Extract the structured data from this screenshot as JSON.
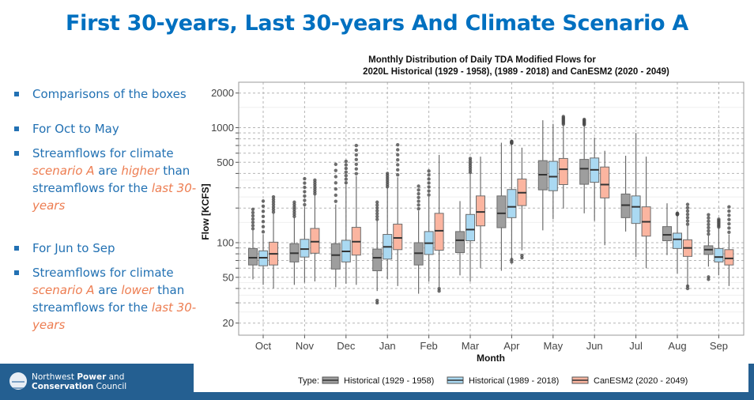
{
  "slide": {
    "title": "First 30-years, Last 30-years And Climate Scenario A",
    "bullets": [
      {
        "segments": [
          {
            "text": "Comparisons of the boxes",
            "hl": false
          }
        ]
      },
      {
        "segments": [
          {
            "text": "For Oct to May",
            "hl": false
          }
        ]
      },
      {
        "segments": [
          {
            "text": "Streamflows for climate ",
            "hl": false
          },
          {
            "text": "scenario A",
            "hl": true
          },
          {
            "text": " are ",
            "hl": false
          },
          {
            "text": "higher",
            "hl": true
          },
          {
            "text": " than streamflows for the ",
            "hl": false
          },
          {
            "text": "last 30-years",
            "hl": true
          }
        ]
      },
      {
        "segments": [
          {
            "text": "For Jun to Sep",
            "hl": false
          }
        ]
      },
      {
        "segments": [
          {
            "text": "Streamflows for climate ",
            "hl": false
          },
          {
            "text": "scenario A",
            "hl": true
          },
          {
            "text": " are ",
            "hl": false
          },
          {
            "text": "lower",
            "hl": true
          },
          {
            "text": " than streamflows for the ",
            "hl": false
          },
          {
            "text": "last 30-years",
            "hl": true
          }
        ]
      }
    ],
    "footer": {
      "logo_line1_normal": "Northwest ",
      "logo_line1_bold": "Power",
      "logo_line1_end": " and",
      "logo_line2_bold": "Conservation",
      "logo_line2_end": " Council"
    },
    "colors": {
      "title": "#0070c0",
      "bullet": "#2271b3",
      "highlight": "#ed7d51",
      "footer": "#245f91"
    }
  },
  "chart_data": {
    "type": "boxplot",
    "title_line1": "Monthly Distribution of Daily TDA Modified Flows for",
    "title_line2": "2020L Historical (1929 - 1958), (1989 - 2018) and CanESM2 (2020 - 2049)",
    "xlabel": "Month",
    "ylabel": "Flow [KCFS]",
    "yscale": "log10",
    "ylim": [
      15,
      2400
    ],
    "yticks": [
      20,
      50,
      100,
      500,
      1000,
      2000
    ],
    "ytick_labels": [
      "20",
      "50",
      "100",
      "500",
      "1000",
      "2000"
    ],
    "minor_grid": [
      30,
      40,
      60,
      70,
      80,
      90,
      200,
      300,
      400,
      600,
      700,
      800,
      900
    ],
    "grid": true,
    "categories": [
      "Oct",
      "Nov",
      "Dec",
      "Jan",
      "Feb",
      "Mar",
      "Apr",
      "May",
      "Jun",
      "Jul",
      "Aug",
      "Sep"
    ],
    "legend": {
      "title": "Type:",
      "position": "bottom"
    },
    "series": [
      {
        "name": "Historical (1929 - 1958)",
        "color": "#9e9e9e",
        "boxes": [
          {
            "min": 48,
            "q1": 64,
            "median": 74,
            "q3": 89,
            "max": 128,
            "outliers_low": 0,
            "outliers_high": 195
          },
          {
            "min": 43,
            "q1": 68,
            "median": 81,
            "q3": 98,
            "max": 165,
            "outliers_low": 0,
            "outliers_high": 225
          },
          {
            "min": 41,
            "q1": 59,
            "median": 78,
            "q3": 98,
            "max": 215,
            "outliers_low": 0,
            "outliers_high": 480
          },
          {
            "min": 38,
            "q1": 57,
            "median": 74,
            "q3": 88,
            "max": 155,
            "outliers_low": 30,
            "outliers_high": 225
          },
          {
            "min": 36,
            "q1": 64,
            "median": 81,
            "q3": 100,
            "max": 190,
            "outliers_low": 0,
            "outliers_high": 310
          },
          {
            "min": 52,
            "q1": 82,
            "median": 105,
            "q3": 125,
            "max": 230,
            "outliers_low": 0,
            "outliers_high": 230
          },
          {
            "min": 57,
            "q1": 135,
            "median": 180,
            "q3": 255,
            "max": 740,
            "outliers_low": 0,
            "outliers_high": 0
          },
          {
            "min": 128,
            "q1": 288,
            "median": 390,
            "q3": 517,
            "max": 1160,
            "outliers_low": 0,
            "outliers_high": 0
          },
          {
            "min": 180,
            "q1": 322,
            "median": 440,
            "q3": 530,
            "max": 1050,
            "outliers_low": 0,
            "outliers_high": 1180
          },
          {
            "min": 125,
            "q1": 165,
            "median": 212,
            "q3": 265,
            "max": 570,
            "outliers_low": 0,
            "outliers_high": 0
          },
          {
            "min": 78,
            "q1": 104,
            "median": 117,
            "q3": 138,
            "max": 220,
            "outliers_low": 0,
            "outliers_high": 0
          },
          {
            "min": 62,
            "q1": 79,
            "median": 87,
            "q3": 94,
            "max": 115,
            "outliers_low": 48,
            "outliers_high": 175
          }
        ]
      },
      {
        "name": "Historical (1989 - 2018)",
        "color": "#aad9f2",
        "boxes": [
          {
            "min": 43,
            "q1": 63,
            "median": 74,
            "q3": 85,
            "max": 118,
            "outliers_low": 0,
            "outliers_high": 230
          },
          {
            "min": 45,
            "q1": 75,
            "median": 88,
            "q3": 107,
            "max": 205,
            "outliers_low": 0,
            "outliers_high": 360
          },
          {
            "min": 44,
            "q1": 68,
            "median": 84,
            "q3": 105,
            "max": 320,
            "outliers_low": 0,
            "outliers_high": 510
          },
          {
            "min": 48,
            "q1": 72,
            "median": 92,
            "q3": 118,
            "max": 300,
            "outliers_low": 0,
            "outliers_high": 400
          },
          {
            "min": 46,
            "q1": 79,
            "median": 99,
            "q3": 125,
            "max": 250,
            "outliers_low": 0,
            "outliers_high": 420
          },
          {
            "min": 46,
            "q1": 104,
            "median": 130,
            "q3": 176,
            "max": 400,
            "outliers_low": 47,
            "outliers_high": 540
          },
          {
            "min": 72,
            "q1": 165,
            "median": 205,
            "q3": 290,
            "max": 730,
            "outliers_low": 68,
            "outliers_high": 760
          },
          {
            "min": 160,
            "q1": 283,
            "median": 375,
            "q3": 510,
            "max": 1080,
            "outliers_low": 0,
            "outliers_high": 0
          },
          {
            "min": 155,
            "q1": 335,
            "median": 430,
            "q3": 545,
            "max": 820,
            "outliers_low": 0,
            "outliers_high": 0
          },
          {
            "min": 75,
            "q1": 147,
            "median": 205,
            "q3": 255,
            "max": 900,
            "outliers_low": 0,
            "outliers_high": 0
          },
          {
            "min": 54,
            "q1": 89,
            "median": 107,
            "q3": 121,
            "max": 175,
            "outliers_low": 0,
            "outliers_high": 180
          },
          {
            "min": 52,
            "q1": 68,
            "median": 75,
            "q3": 89,
            "max": 135,
            "outliers_low": 0,
            "outliers_high": 160
          }
        ]
      },
      {
        "name": "CanESM2 (2020 - 2049)",
        "color": "#fbb5a0",
        "boxes": [
          {
            "min": 40,
            "q1": 64,
            "median": 80,
            "q3": 101,
            "max": 180,
            "outliers_low": 0,
            "outliers_high": 250
          },
          {
            "min": 46,
            "q1": 81,
            "median": 102,
            "q3": 133,
            "max": 260,
            "outliers_low": 0,
            "outliers_high": 350
          },
          {
            "min": 43,
            "q1": 78,
            "median": 102,
            "q3": 136,
            "max": 380,
            "outliers_low": 0,
            "outliers_high": 700
          },
          {
            "min": 42,
            "q1": 87,
            "median": 110,
            "q3": 145,
            "max": 370,
            "outliers_low": 0,
            "outliers_high": 710
          },
          {
            "min": 41,
            "q1": 86,
            "median": 127,
            "q3": 180,
            "max": 580,
            "outliers_low": 38,
            "outliers_high": 0
          },
          {
            "min": 60,
            "q1": 140,
            "median": 185,
            "q3": 255,
            "max": 560,
            "outliers_low": 0,
            "outliers_high": 0
          },
          {
            "min": 86,
            "q1": 210,
            "median": 272,
            "q3": 358,
            "max": 670,
            "outliers_low": 74,
            "outliers_high": 0
          },
          {
            "min": 198,
            "q1": 320,
            "median": 435,
            "q3": 540,
            "max": 1060,
            "outliers_low": 0,
            "outliers_high": 1250
          },
          {
            "min": 95,
            "q1": 245,
            "median": 320,
            "q3": 455,
            "max": 630,
            "outliers_low": 100,
            "outliers_high": 0
          },
          {
            "min": 60,
            "q1": 114,
            "median": 152,
            "q3": 205,
            "max": 560,
            "outliers_low": 0,
            "outliers_high": 0
          },
          {
            "min": 41,
            "q1": 76,
            "median": 90,
            "q3": 106,
            "max": 140,
            "outliers_low": 40,
            "outliers_high": 215
          },
          {
            "min": 42,
            "q1": 64,
            "median": 73,
            "q3": 87,
            "max": 118,
            "outliers_low": 0,
            "outliers_high": 205
          }
        ]
      }
    ]
  }
}
